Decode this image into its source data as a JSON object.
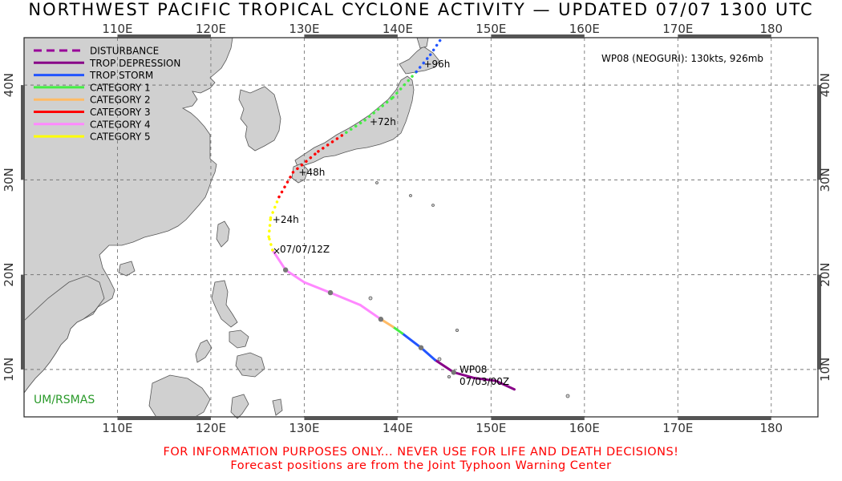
{
  "title": "NORTHWEST PACIFIC TROPICAL CYCLONE ACTIVITY — UPDATED 07/07 1300 UTC",
  "footer_line1": "FOR INFORMATION PURPOSES ONLY... NEVER USE FOR LIFE AND DEATH DECISIONS!",
  "footer_line2": "Forecast positions are from the Joint Typhoon Warning Center",
  "credit": "UM/RSMAS",
  "storm_info": "WP08 (NEOGURI): 130kts, 926mb",
  "storm_label": "WP08",
  "start_label": "07/03/00Z",
  "current_label": "07/07/12Z",
  "lon_labels": [
    "110E",
    "120E",
    "130E",
    "140E",
    "150E",
    "160E",
    "170E",
    "180"
  ],
  "lat_labels": [
    "10N",
    "20N",
    "30N",
    "40N"
  ],
  "legend": [
    {
      "label": "DISTURBANCE",
      "color": "#990099",
      "dashed": true
    },
    {
      "label": "TROP DEPRESSION",
      "color": "#880088",
      "dashed": false
    },
    {
      "label": "TROP STORM",
      "color": "#2255ff",
      "dashed": false
    },
    {
      "label": "CATEGORY 1",
      "color": "#44ee44",
      "dashed": false
    },
    {
      "label": "CATEGORY 2",
      "color": "#ffbb66",
      "dashed": false
    },
    {
      "label": "CATEGORY 3",
      "color": "#ff0000",
      "dashed": false
    },
    {
      "label": "CATEGORY 4",
      "color": "#ff88ff",
      "dashed": false
    },
    {
      "label": "CATEGORY 5",
      "color": "#ffff00",
      "dashed": false
    }
  ],
  "map_extent": {
    "lon_min": 100,
    "lon_max": 185,
    "lat_min": 5,
    "lat_max": 45
  },
  "track": [
    {
      "lon": 152.5,
      "lat": 7.9,
      "cat": "DISTURBANCE"
    },
    {
      "lon": 150.5,
      "lat": 8.8,
      "cat": "TROP DEPRESSION"
    },
    {
      "lon": 148.2,
      "lat": 9.1,
      "cat": "TROP DEPRESSION"
    },
    {
      "lon": 146.0,
      "lat": 9.7,
      "cat": "TROP DEPRESSION"
    },
    {
      "lon": 144.0,
      "lat": 11.0,
      "cat": "TROP DEPRESSION"
    },
    {
      "lon": 142.5,
      "lat": 12.3,
      "cat": "TROP STORM"
    },
    {
      "lon": 140.5,
      "lat": 13.8,
      "cat": "TROP STORM"
    },
    {
      "lon": 139.5,
      "lat": 14.5,
      "cat": "CATEGORY 1"
    },
    {
      "lon": 138.2,
      "lat": 15.3,
      "cat": "CATEGORY 2"
    },
    {
      "lon": 136.0,
      "lat": 16.8,
      "cat": "CATEGORY 4"
    },
    {
      "lon": 132.8,
      "lat": 18.1,
      "cat": "CATEGORY 4"
    },
    {
      "lon": 130.0,
      "lat": 19.2,
      "cat": "CATEGORY 4"
    },
    {
      "lon": 128.0,
      "lat": 20.5,
      "cat": "CATEGORY 4"
    },
    {
      "lon": 126.6,
      "lat": 22.6,
      "cat": "CATEGORY 4"
    }
  ],
  "forecast": [
    {
      "lon": 126.6,
      "lat": 22.6,
      "cat": "CATEGORY 5"
    },
    {
      "lon": 126.2,
      "lat": 24.0,
      "cat": "CATEGORY 5"
    },
    {
      "lon": 126.4,
      "lat": 26.0,
      "cat": "CATEGORY 5"
    },
    {
      "lon": 127.3,
      "lat": 28.2,
      "cat": "CATEGORY 5"
    },
    {
      "lon": 128.8,
      "lat": 30.8,
      "cat": "CATEGORY 3"
    },
    {
      "lon": 131.5,
      "lat": 33.0,
      "cat": "CATEGORY 3"
    },
    {
      "lon": 134.5,
      "lat": 35.0,
      "cat": "CATEGORY 3"
    },
    {
      "lon": 136.5,
      "lat": 36.3,
      "cat": "CATEGORY 1"
    },
    {
      "lon": 139.5,
      "lat": 38.7,
      "cat": "CATEGORY 1"
    },
    {
      "lon": 142.0,
      "lat": 41.4,
      "cat": "CATEGORY 1"
    },
    {
      "lon": 143.5,
      "lat": 43.2,
      "cat": "TROP STORM"
    },
    {
      "lon": 144.6,
      "lat": 44.8,
      "cat": "TROP STORM"
    }
  ],
  "forecast_labels": [
    {
      "text": "+24h",
      "lon": 126.6,
      "lat": 25.8
    },
    {
      "text": "+48h",
      "lon": 129.4,
      "lat": 30.8
    },
    {
      "text": "+72h",
      "lon": 137.0,
      "lat": 36.1
    },
    {
      "text": "+96h",
      "lon": 142.8,
      "lat": 42.2
    }
  ],
  "points": [
    {
      "lon": 146.0,
      "lat": 9.7
    },
    {
      "lon": 142.5,
      "lat": 12.3
    },
    {
      "lon": 138.2,
      "lat": 15.3
    },
    {
      "lon": 132.8,
      "lat": 18.1
    },
    {
      "lon": 128.0,
      "lat": 20.5
    }
  ]
}
